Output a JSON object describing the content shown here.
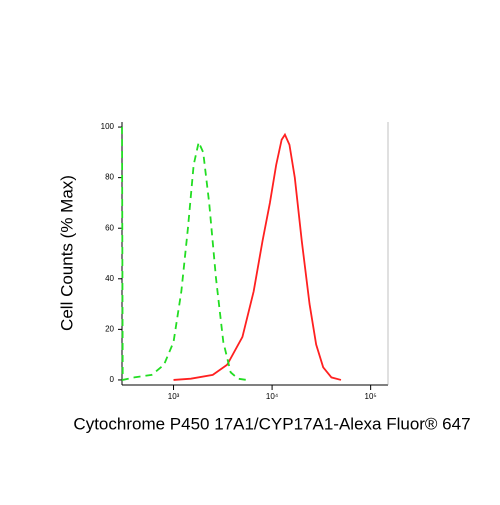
{
  "chart_data": {
    "type": "line",
    "x_label": "Cytochrome P450 17A1/CYP17A1-Alexa Fluor® 647",
    "y_label": "Cell Counts (% Max)",
    "x_scale": "log",
    "xlim": [
      300,
      150000
    ],
    "xticks": [
      {
        "value": 1000,
        "label": "10³"
      },
      {
        "value": 10000,
        "label": "10⁴"
      },
      {
        "value": 100000,
        "label": "10⁵"
      }
    ],
    "ylim": [
      -2,
      102
    ],
    "yticks": [
      0,
      20,
      40,
      60,
      80,
      100
    ],
    "series": [
      {
        "color": "#ff2020",
        "line_style": "solid",
        "x": [
          1000,
          1500,
          2500,
          3500,
          5000,
          6500,
          8000,
          9500,
          11000,
          12500,
          13500,
          15000,
          17000,
          20000,
          24000,
          28000,
          33000,
          40000,
          50000
        ],
        "values": [
          0,
          0.5,
          2,
          6,
          17,
          35,
          55,
          70,
          85,
          95,
          97,
          93,
          80,
          55,
          30,
          14,
          5,
          1,
          0
        ]
      },
      {
        "color": "#22dd22",
        "line_style": "dashed",
        "x": [
          300,
          305,
          400,
          600,
          800,
          1000,
          1200,
          1400,
          1600,
          1800,
          2000,
          2300,
          2700,
          3200,
          3800,
          4500,
          5500
        ],
        "values": [
          100,
          0,
          1,
          2,
          6,
          15,
          35,
          60,
          85,
          94,
          90,
          70,
          40,
          15,
          3,
          0.5,
          0
        ]
      }
    ]
  }
}
